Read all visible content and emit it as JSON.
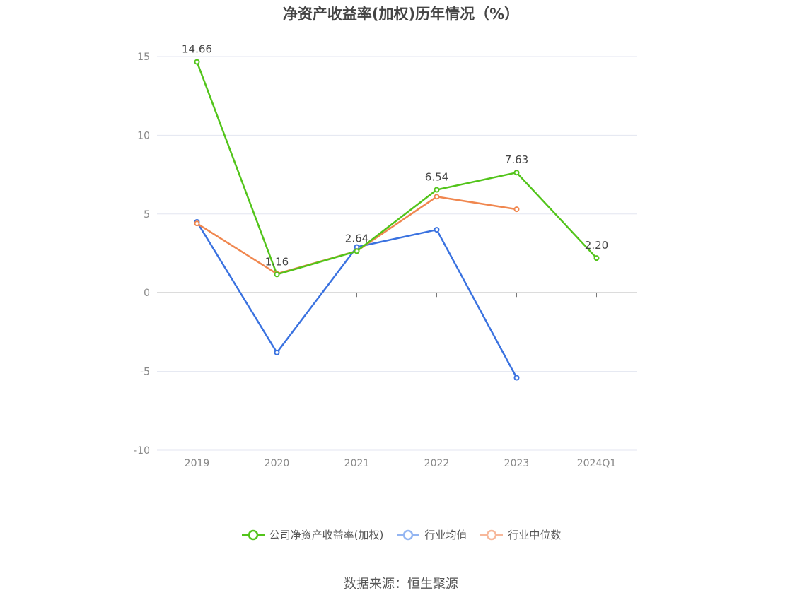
{
  "chart_data": {
    "type": "line",
    "title": "净资产收益率(加权)历年情况（%）",
    "categories": [
      "2019",
      "2020",
      "2021",
      "2022",
      "2023",
      "2024Q1"
    ],
    "ylim": [
      -10,
      15
    ],
    "yticks": [
      15,
      10,
      5,
      0,
      -5,
      -10
    ],
    "grid": true,
    "legend_position": "bottom",
    "series": [
      {
        "name": "公司净资产收益率(加权)",
        "color": "#52c41a",
        "values": [
          14.66,
          1.16,
          2.64,
          6.54,
          7.63,
          2.2
        ],
        "labels": [
          "14.66",
          "1.16",
          "2.64",
          "6.54",
          "7.63",
          "2.20"
        ]
      },
      {
        "name": "行业均值",
        "color": "#3a72e0",
        "values": [
          4.5,
          -3.8,
          2.9,
          4.0,
          -5.4,
          null
        ]
      },
      {
        "name": "行业中位数",
        "color": "#f0874f",
        "values": [
          4.4,
          1.2,
          2.65,
          6.1,
          5.3,
          null
        ]
      }
    ]
  },
  "legend_colors_light": [
    "#52c41a",
    "#93b5f2",
    "#f7b89b"
  ],
  "source": "数据来源：恒生聚源"
}
